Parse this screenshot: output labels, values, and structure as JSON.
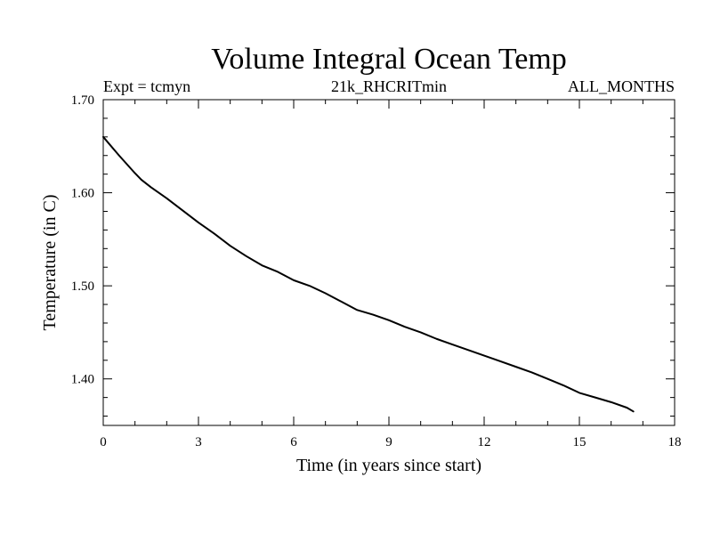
{
  "chart_data": {
    "type": "line",
    "title": "Volume Integral Ocean Temp",
    "subtitle_left": "Expt = tcmyn",
    "subtitle_center": "21k_RHCRITmin",
    "subtitle_right": "ALL_MONTHS",
    "xlabel": "Time (in years since start)",
    "ylabel": "Temperature (in C)",
    "xlim": [
      0,
      18
    ],
    "ylim": [
      1.35,
      1.7
    ],
    "x_ticks": [
      0,
      3,
      6,
      9,
      12,
      15,
      18
    ],
    "x_tick_labels": [
      "0",
      "3",
      "6",
      "9",
      "12",
      "15",
      "18"
    ],
    "y_ticks": [
      1.4,
      1.5,
      1.6,
      1.7
    ],
    "y_tick_labels": [
      "1.40",
      "1.50",
      "1.60",
      "1.70"
    ],
    "series": [
      {
        "name": "Volume Integral Ocean Temp",
        "color": "#000000",
        "x": [
          0,
          0.5,
          1.0,
          1.2,
          1.5,
          2.0,
          2.5,
          3.0,
          3.5,
          4.0,
          4.5,
          5.0,
          5.5,
          6.0,
          6.5,
          7.0,
          7.5,
          8.0,
          8.5,
          9.0,
          9.5,
          10.0,
          10.5,
          11.0,
          11.5,
          12.0,
          12.5,
          13.0,
          13.5,
          14.0,
          14.5,
          15.0,
          15.5,
          16.0,
          16.5,
          16.7
        ],
        "y": [
          1.66,
          1.64,
          1.621,
          1.614,
          1.606,
          1.594,
          1.581,
          1.568,
          1.556,
          1.543,
          1.532,
          1.522,
          1.515,
          1.506,
          1.5,
          1.492,
          1.483,
          1.474,
          1.469,
          1.463,
          1.456,
          1.45,
          1.443,
          1.437,
          1.431,
          1.425,
          1.419,
          1.413,
          1.407,
          1.4,
          1.393,
          1.385,
          1.38,
          1.375,
          1.369,
          1.365
        ]
      }
    ]
  }
}
